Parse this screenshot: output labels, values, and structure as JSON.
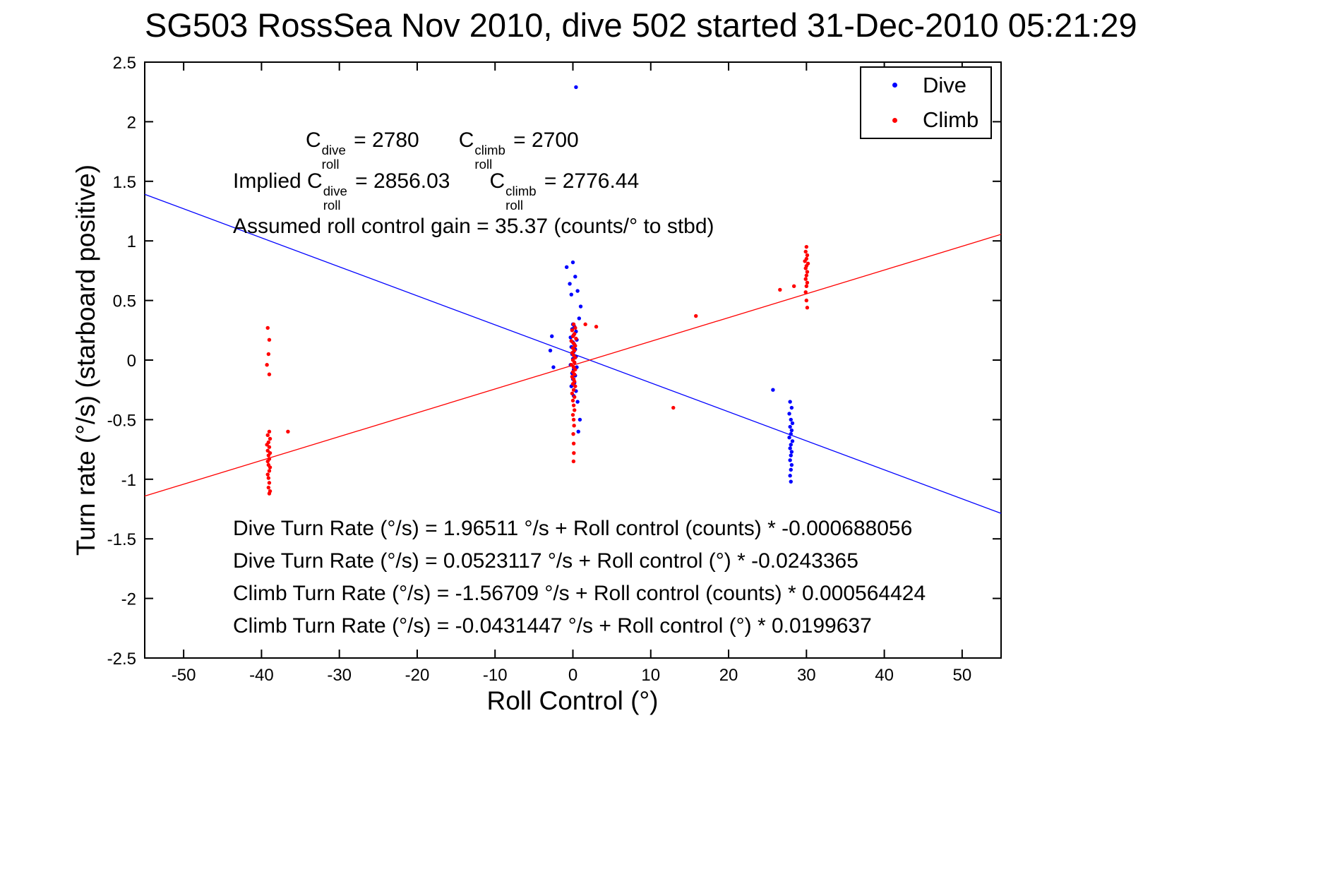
{
  "chart_data": {
    "type": "scatter",
    "title": "SG503 RossSea Nov 2010, dive 502 started 31-Dec-2010 05:21:29",
    "xlabel": "Roll Control (°)",
    "ylabel": "Turn rate (°/s) (starboard positive)",
    "xlim": [
      -55,
      55
    ],
    "ylim": [
      -2.5,
      2.5
    ],
    "grid": false,
    "x_ticks": [
      {
        "v": -50,
        "label": "-50"
      },
      {
        "v": -40,
        "label": "-40"
      },
      {
        "v": -30,
        "label": "-30"
      },
      {
        "v": -20,
        "label": "-20"
      },
      {
        "v": -10,
        "label": "-10"
      },
      {
        "v": 0,
        "label": "0"
      },
      {
        "v": 10,
        "label": "10"
      },
      {
        "v": 20,
        "label": "20"
      },
      {
        "v": 30,
        "label": "30"
      },
      {
        "v": 40,
        "label": "40"
      },
      {
        "v": 50,
        "label": "50"
      }
    ],
    "y_ticks": [
      {
        "v": 2.5,
        "label": "2.5"
      },
      {
        "v": 2,
        "label": "2"
      },
      {
        "v": 1.5,
        "label": "1.5"
      },
      {
        "v": 1,
        "label": "1"
      },
      {
        "v": 0.5,
        "label": "0.5"
      },
      {
        "v": 0,
        "label": "0"
      },
      {
        "v": -0.5,
        "label": "-0.5"
      },
      {
        "v": -1,
        "label": "-1"
      },
      {
        "v": -1.5,
        "label": "-1.5"
      },
      {
        "v": -2,
        "label": "-2"
      },
      {
        "v": -2.5,
        "label": "-2.5"
      }
    ],
    "legend": {
      "position": "top-right",
      "items": [
        {
          "name": "Dive",
          "color": "#0000ff"
        },
        {
          "name": "Climb",
          "color": "#ff0000"
        }
      ]
    },
    "series": [
      {
        "name": "Dive",
        "marker": "dot",
        "color": "#0000ff",
        "points": [
          [
            0.4,
            2.29
          ],
          [
            -0.8,
            0.78
          ],
          [
            0.0,
            0.82
          ],
          [
            0.3,
            0.7
          ],
          [
            -0.4,
            0.64
          ],
          [
            0.6,
            0.58
          ],
          [
            -0.2,
            0.55
          ],
          [
            1.0,
            0.45
          ],
          [
            0.8,
            0.35
          ],
          [
            -2.7,
            0.2
          ],
          [
            -2.9,
            0.08
          ],
          [
            -2.5,
            -0.06
          ],
          [
            0.0,
            0.3
          ],
          [
            0.2,
            0.28
          ],
          [
            -0.1,
            0.26
          ],
          [
            0.4,
            0.24
          ],
          [
            0.1,
            0.21
          ],
          [
            -0.3,
            0.19
          ],
          [
            0.5,
            0.17
          ],
          [
            0.0,
            0.15
          ],
          [
            0.2,
            0.13
          ],
          [
            -0.2,
            0.11
          ],
          [
            0.3,
            0.09
          ],
          [
            0.1,
            0.07
          ],
          [
            -0.1,
            0.05
          ],
          [
            0.4,
            0.03
          ],
          [
            0.0,
            0.01
          ],
          [
            0.2,
            -0.02
          ],
          [
            -0.3,
            -0.04
          ],
          [
            0.5,
            -0.06
          ],
          [
            0.1,
            -0.08
          ],
          [
            -0.1,
            -0.11
          ],
          [
            0.3,
            -0.13
          ],
          [
            0.0,
            -0.16
          ],
          [
            0.2,
            -0.19
          ],
          [
            -0.2,
            -0.22
          ],
          [
            0.4,
            -0.26
          ],
          [
            0.1,
            -0.3
          ],
          [
            0.6,
            -0.35
          ],
          [
            0.9,
            -0.5
          ],
          [
            0.7,
            -0.6
          ],
          [
            25.7,
            -0.25
          ],
          [
            27.9,
            -0.35
          ],
          [
            28.1,
            -0.4
          ],
          [
            27.8,
            -0.45
          ],
          [
            28.0,
            -0.5
          ],
          [
            28.2,
            -0.53
          ],
          [
            27.9,
            -0.56
          ],
          [
            28.1,
            -0.59
          ],
          [
            28.0,
            -0.62
          ],
          [
            27.8,
            -0.65
          ],
          [
            28.2,
            -0.68
          ],
          [
            28.0,
            -0.71
          ],
          [
            27.9,
            -0.74
          ],
          [
            28.1,
            -0.77
          ],
          [
            28.0,
            -0.8
          ],
          [
            27.9,
            -0.84
          ],
          [
            28.1,
            -0.88
          ],
          [
            28.0,
            -0.92
          ],
          [
            27.9,
            -0.97
          ],
          [
            28.0,
            -1.02
          ]
        ]
      },
      {
        "name": "Climb",
        "marker": "dot",
        "color": "#ff0000",
        "points": [
          [
            -39.2,
            0.27
          ],
          [
            -39.0,
            0.17
          ],
          [
            -39.1,
            0.05
          ],
          [
            -39.3,
            -0.04
          ],
          [
            -39.0,
            -0.12
          ],
          [
            -39.0,
            -0.6
          ],
          [
            -39.2,
            -0.63
          ],
          [
            -38.9,
            -0.66
          ],
          [
            -39.1,
            -0.69
          ],
          [
            -39.3,
            -0.71
          ],
          [
            -39.0,
            -0.73
          ],
          [
            -39.2,
            -0.76
          ],
          [
            -38.9,
            -0.78
          ],
          [
            -39.1,
            -0.8
          ],
          [
            -39.0,
            -0.83
          ],
          [
            -39.2,
            -0.85
          ],
          [
            -39.1,
            -0.88
          ],
          [
            -38.9,
            -0.9
          ],
          [
            -39.0,
            -0.93
          ],
          [
            -39.2,
            -0.96
          ],
          [
            -39.1,
            -0.99
          ],
          [
            -39.0,
            -1.03
          ],
          [
            -39.1,
            -1.07
          ],
          [
            -38.9,
            -1.1
          ],
          [
            -39.0,
            -1.12
          ],
          [
            -36.6,
            -0.6
          ],
          [
            0.1,
            0.3
          ],
          [
            0.3,
            0.27
          ],
          [
            -0.1,
            0.25
          ],
          [
            0.2,
            0.22
          ],
          [
            0.0,
            0.2
          ],
          [
            0.4,
            0.18
          ],
          [
            -0.2,
            0.16
          ],
          [
            0.1,
            0.14
          ],
          [
            0.3,
            0.12
          ],
          [
            0.0,
            0.1
          ],
          [
            0.2,
            0.08
          ],
          [
            -0.1,
            0.06
          ],
          [
            0.1,
            0.04
          ],
          [
            0.3,
            0.02
          ],
          [
            0.0,
            0.0
          ],
          [
            0.2,
            -0.02
          ],
          [
            -0.2,
            -0.04
          ],
          [
            0.1,
            -0.06
          ],
          [
            0.3,
            -0.08
          ],
          [
            0.0,
            -0.1
          ],
          [
            0.2,
            -0.12
          ],
          [
            -0.1,
            -0.14
          ],
          [
            0.1,
            -0.16
          ],
          [
            0.2,
            -0.18
          ],
          [
            0.0,
            -0.2
          ],
          [
            0.3,
            -0.22
          ],
          [
            0.1,
            -0.25
          ],
          [
            -0.1,
            -0.28
          ],
          [
            0.2,
            -0.31
          ],
          [
            0.0,
            -0.34
          ],
          [
            0.1,
            -0.38
          ],
          [
            0.2,
            -0.42
          ],
          [
            0.0,
            -0.46
          ],
          [
            0.1,
            -0.5
          ],
          [
            0.15,
            -0.55
          ],
          [
            0.05,
            -0.62
          ],
          [
            0.1,
            -0.7
          ],
          [
            0.12,
            -0.78
          ],
          [
            0.08,
            -0.85
          ],
          [
            3.0,
            0.28
          ],
          [
            1.6,
            0.3
          ],
          [
            12.9,
            -0.4
          ],
          [
            15.8,
            0.37
          ],
          [
            26.6,
            0.59
          ],
          [
            28.4,
            0.62
          ],
          [
            30.0,
            0.95
          ],
          [
            29.9,
            0.91
          ],
          [
            30.1,
            0.88
          ],
          [
            30.0,
            0.85
          ],
          [
            29.8,
            0.83
          ],
          [
            30.2,
            0.81
          ],
          [
            30.0,
            0.79
          ],
          [
            29.9,
            0.77
          ],
          [
            30.1,
            0.74
          ],
          [
            30.0,
            0.71
          ],
          [
            29.9,
            0.68
          ],
          [
            30.1,
            0.65
          ],
          [
            30.0,
            0.62
          ],
          [
            29.9,
            0.57
          ],
          [
            30.0,
            0.5
          ],
          [
            30.1,
            0.44
          ]
        ]
      }
    ],
    "fit_lines": [
      {
        "name": "dive-fit",
        "color": "#0000ff",
        "intercept": 0.0523117,
        "slope": -0.0243365
      },
      {
        "name": "climb-fit",
        "color": "#ff0000",
        "intercept": -0.0431447,
        "slope": 0.0199637
      }
    ]
  },
  "annotations": {
    "c_values": {
      "c1": {
        "base": "C",
        "sup": "dive",
        "sub": "roll",
        "eq": " = 2780"
      },
      "c2": {
        "base": "C",
        "sup": "climb",
        "sub": "roll",
        "eq": " = 2700"
      }
    },
    "implied": {
      "prefix": "Implied ",
      "c1": {
        "base": "C",
        "sup": "dive",
        "sub": "roll",
        "eq": " = 2856.03"
      },
      "c2": {
        "base": "C",
        "sup": "climb",
        "sub": "roll",
        "eq": " = 2776.44"
      }
    },
    "gain": "Assumed roll control gain = 35.37 (counts/° to stbd)"
  },
  "equations": [
    "Dive Turn Rate (°/s) = 1.96511 °/s + Roll control (counts) * -0.000688056",
    "Dive Turn Rate (°/s) = 0.0523117 °/s + Roll control (°) * -0.0243365",
    "Climb Turn Rate (°/s) = -1.56709 °/s + Roll control (counts) * 0.000564424",
    "Climb Turn Rate (°/s) = -0.0431447 °/s + Roll control (°) * 0.0199637"
  ]
}
